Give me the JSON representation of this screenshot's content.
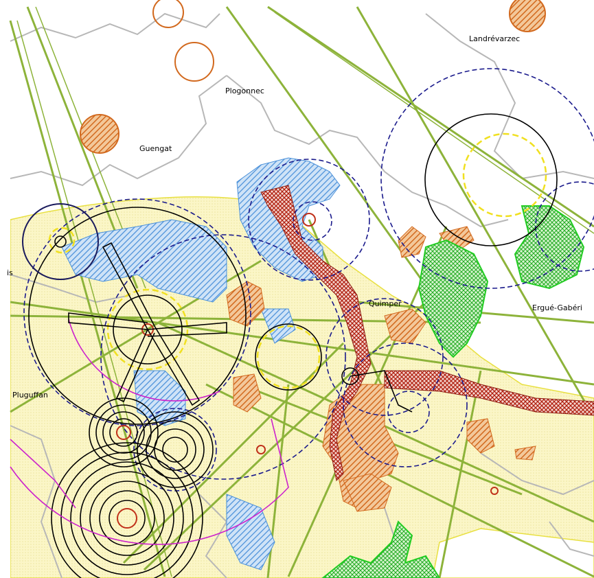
{
  "labels": [
    "Landrévarzec",
    "Plogonnec",
    "Guengat",
    "is",
    "Quimper",
    "Ergué-Gabéri",
    "Pluguffan"
  ]
}
